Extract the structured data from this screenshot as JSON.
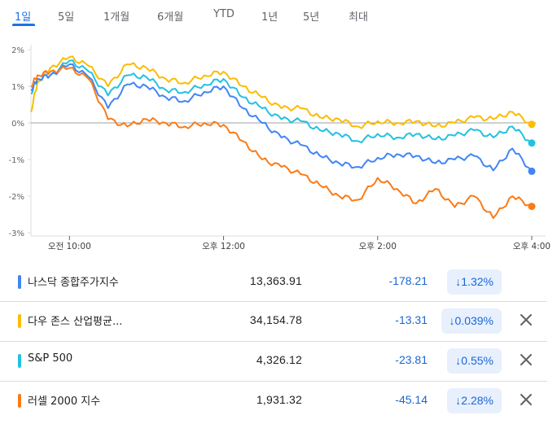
{
  "tabs": [
    "1일",
    "5일",
    "1개월",
    "6개월",
    "YTD",
    "1년",
    "5년",
    "최대"
  ],
  "active_tab": 0,
  "colors": {
    "nasdaq": "#4285f4",
    "dow": "#fbbc04",
    "sp500": "#24c1e0",
    "russell": "#fa7b17",
    "negative": "#1967d2",
    "badge_bg": "#e8f0fe"
  },
  "chart_data": {
    "type": "line",
    "y_ticks": [
      "2%",
      "1%",
      "0%",
      "-1%",
      "-2%",
      "-3%"
    ],
    "x_ticks": [
      "오전 10:00",
      "오후 12:00",
      "오후 2:00",
      "오후 4:00"
    ],
    "ylim": [
      -3,
      2
    ],
    "x_range": [
      "09:30",
      "16:00"
    ],
    "x_tick_times": [
      "10:00",
      "12:00",
      "14:00",
      "16:00"
    ],
    "baseline": 0,
    "grid": true,
    "series": [
      {
        "name": "다우 존스 산업평균...",
        "color": "#fbbc04",
        "x": [
          "09:30",
          "09:35",
          "09:45",
          "10:00",
          "10:15",
          "10:30",
          "10:45",
          "11:00",
          "11:15",
          "11:30",
          "11:45",
          "12:00",
          "12:15",
          "12:30",
          "12:45",
          "13:00",
          "13:15",
          "13:30",
          "13:45",
          "14:00",
          "14:15",
          "14:30",
          "14:45",
          "15:00",
          "15:15",
          "15:30",
          "15:45",
          "16:00"
        ],
        "values": [
          0.3,
          1.1,
          1.5,
          1.8,
          1.55,
          1.0,
          1.6,
          1.5,
          1.2,
          1.1,
          1.3,
          1.4,
          1.0,
          0.7,
          0.4,
          0.4,
          0.15,
          0.1,
          -0.1,
          0.05,
          0.0,
          0.05,
          -0.1,
          0.0,
          0.15,
          0.1,
          0.3,
          -0.04
        ]
      },
      {
        "name": "S&P 500",
        "color": "#24c1e0",
        "x": [
          "09:30",
          "09:35",
          "09:45",
          "10:00",
          "10:15",
          "10:30",
          "10:45",
          "11:00",
          "11:15",
          "11:30",
          "11:45",
          "12:00",
          "12:15",
          "12:30",
          "12:45",
          "13:00",
          "13:15",
          "13:30",
          "13:45",
          "14:00",
          "14:15",
          "14:30",
          "14:45",
          "15:00",
          "15:15",
          "15:30",
          "15:45",
          "16:00"
        ],
        "values": [
          0.8,
          1.2,
          1.3,
          1.7,
          1.4,
          0.75,
          1.3,
          1.25,
          0.9,
          0.85,
          1.05,
          1.2,
          0.7,
          0.4,
          0.1,
          0.05,
          -0.2,
          -0.3,
          -0.5,
          -0.3,
          -0.4,
          -0.3,
          -0.45,
          -0.35,
          -0.2,
          -0.4,
          -0.1,
          -0.55
        ]
      },
      {
        "name": "나스닥 종합주가지수",
        "color": "#4285f4",
        "x": [
          "09:30",
          "09:35",
          "09:45",
          "10:00",
          "10:15",
          "10:30",
          "10:45",
          "11:00",
          "11:15",
          "11:30",
          "11:45",
          "12:00",
          "12:15",
          "12:30",
          "12:45",
          "13:00",
          "13:15",
          "13:30",
          "13:45",
          "14:00",
          "14:15",
          "14:30",
          "14:45",
          "15:00",
          "15:15",
          "15:30",
          "15:45",
          "16:00"
        ],
        "values": [
          0.9,
          1.2,
          1.3,
          1.6,
          1.25,
          0.4,
          1.05,
          1.0,
          0.7,
          0.6,
          0.85,
          1.0,
          0.4,
          0.0,
          -0.4,
          -0.6,
          -0.9,
          -1.1,
          -1.2,
          -0.95,
          -0.85,
          -0.9,
          -1.1,
          -1.0,
          -0.9,
          -1.3,
          -0.7,
          -1.32
        ]
      },
      {
        "name": "러셀 2000 지수",
        "color": "#fa7b17",
        "x": [
          "09:30",
          "09:35",
          "09:45",
          "10:00",
          "10:15",
          "10:30",
          "10:45",
          "11:00",
          "11:15",
          "11:30",
          "11:45",
          "12:00",
          "12:15",
          "12:30",
          "12:45",
          "13:00",
          "13:15",
          "13:30",
          "13:45",
          "14:00",
          "14:15",
          "14:30",
          "14:45",
          "15:00",
          "15:15",
          "15:30",
          "15:45",
          "16:00"
        ],
        "values": [
          1.0,
          1.3,
          1.4,
          1.5,
          1.2,
          0.1,
          -0.1,
          0.1,
          0.0,
          -0.1,
          0.0,
          -0.05,
          -0.5,
          -1.0,
          -1.2,
          -1.4,
          -1.7,
          -2.0,
          -2.1,
          -1.5,
          -1.8,
          -2.2,
          -1.8,
          -2.3,
          -2.0,
          -2.6,
          -2.0,
          -2.28
        ]
      }
    ]
  },
  "indices": [
    {
      "name": "나스닥 종합주가지수",
      "price": "13,363.91",
      "change": "-178.21",
      "percent": "1.32%",
      "color": "#4285f4",
      "removable": false
    },
    {
      "name": "다우 존스 산업평균...",
      "price": "34,154.78",
      "change": "-13.31",
      "percent": "0.039%",
      "color": "#fbbc04",
      "removable": true
    },
    {
      "name": "S&P 500",
      "price": "4,326.12",
      "change": "-23.81",
      "percent": "0.55%",
      "color": "#24c1e0",
      "removable": true
    },
    {
      "name": "러셀 2000 지수",
      "price": "1,931.32",
      "change": "-45.14",
      "percent": "2.28%",
      "color": "#fa7b17",
      "removable": true
    }
  ],
  "arrow_glyph": "↓"
}
